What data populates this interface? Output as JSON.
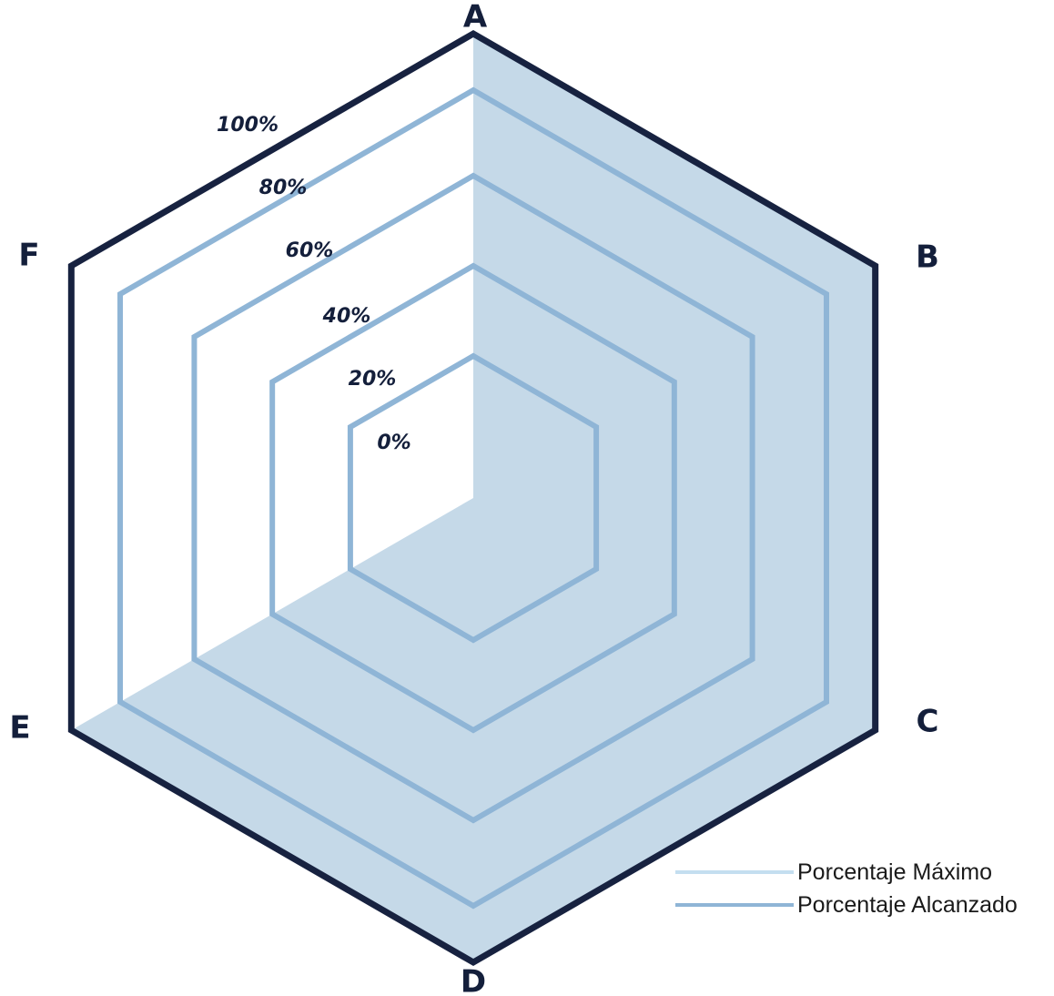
{
  "chart_data": {
    "type": "radar",
    "categories": [
      "A",
      "B",
      "C",
      "D",
      "E",
      "F"
    ],
    "tick_labels": [
      "0%",
      "20%",
      "40%",
      "60%",
      "80%",
      "100%"
    ],
    "series": [
      {
        "name": "Porcentaje Máximo",
        "values": [
          100,
          100,
          100,
          100,
          100,
          0
        ]
      },
      {
        "name": "Porcentaje Alcanzado",
        "values": [
          100,
          100,
          100,
          100,
          100,
          0
        ]
      }
    ],
    "colors": {
      "outer": "#172240",
      "ring": "#8fb5d6",
      "fill": "#c5d9e8",
      "legend_max": "#c4def0",
      "legend_reached": "#8fb5d6"
    },
    "legend_placement": "bottom-right"
  }
}
